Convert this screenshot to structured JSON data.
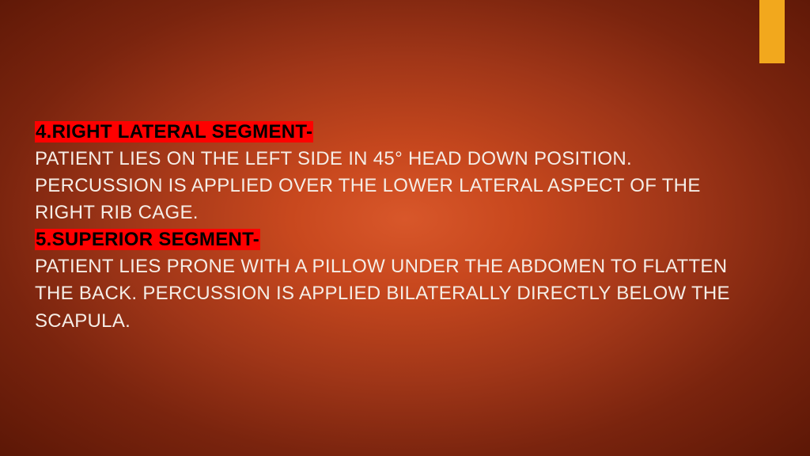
{
  "slide": {
    "background": {
      "gradient_center": "#d8572a",
      "gradient_mid": "#a03618",
      "gradient_edge": "#5c1706"
    },
    "accent_bar_color": "#f2a81d",
    "text_color": "#f5ede6",
    "heading_bg": "#ff0000",
    "heading_color": "#000000",
    "font_size": 24,
    "blocks": [
      {
        "type": "heading",
        "text": "4.RIGHT LATERAL SEGMENT-"
      },
      {
        "type": "body",
        "text": "PATIENT LIES ON THE LEFT SIDE IN 45° HEAD DOWN POSITION. PERCUSSION IS APPLIED OVER THE LOWER LATERAL ASPECT OF THE RIGHT RIB CAGE."
      },
      {
        "type": "heading",
        "text": "5.SUPERIOR SEGMENT-"
      },
      {
        "type": "body",
        "text": "PATIENT LIES PRONE WITH A PILLOW UNDER THE ABDOMEN TO FLATTEN THE BACK. PERCUSSION IS APPLIED BILATERALLY DIRECTLY BELOW THE SCAPULA."
      }
    ]
  }
}
